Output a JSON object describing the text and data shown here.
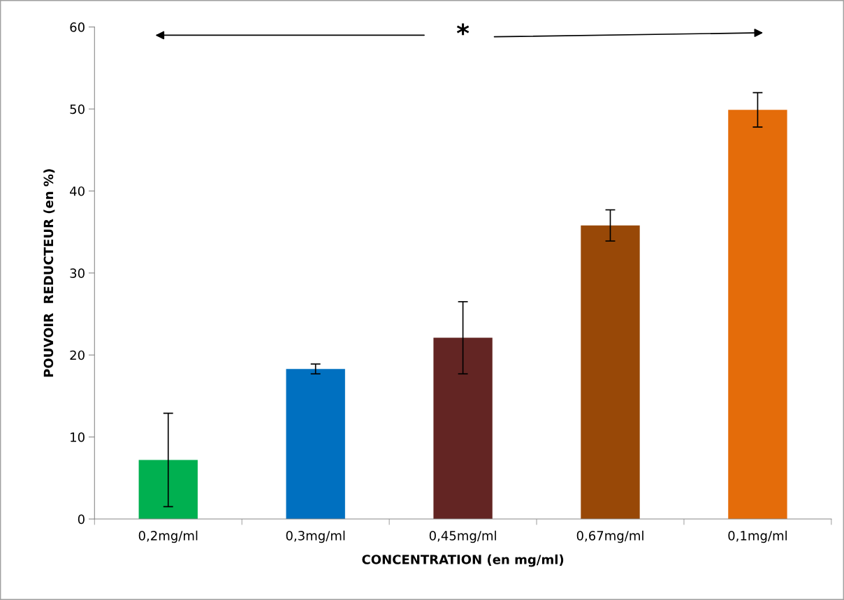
{
  "chart_data": {
    "type": "bar",
    "xlabel": "CONCENTRATION (en mg/ml)",
    "ylabel": "POUVOIR  REDUCTEUR (en %)",
    "categories": [
      "0,2mg/ml",
      "0,3mg/ml",
      "0,45mg/ml",
      "0,67mg/ml",
      "0,1mg/ml"
    ],
    "values": [
      7.2,
      18.3,
      22.1,
      35.8,
      49.9
    ],
    "errors": [
      5.7,
      0.6,
      4.4,
      1.9,
      2.1
    ],
    "colors": [
      "#00b050",
      "#0070c0",
      "#632523",
      "#984807",
      "#e46c0a"
    ],
    "ylim": [
      0,
      60
    ],
    "yticks": [
      0,
      10,
      20,
      30,
      40,
      50,
      60
    ],
    "grid": false,
    "legend": false,
    "annotations": [
      "*"
    ]
  }
}
